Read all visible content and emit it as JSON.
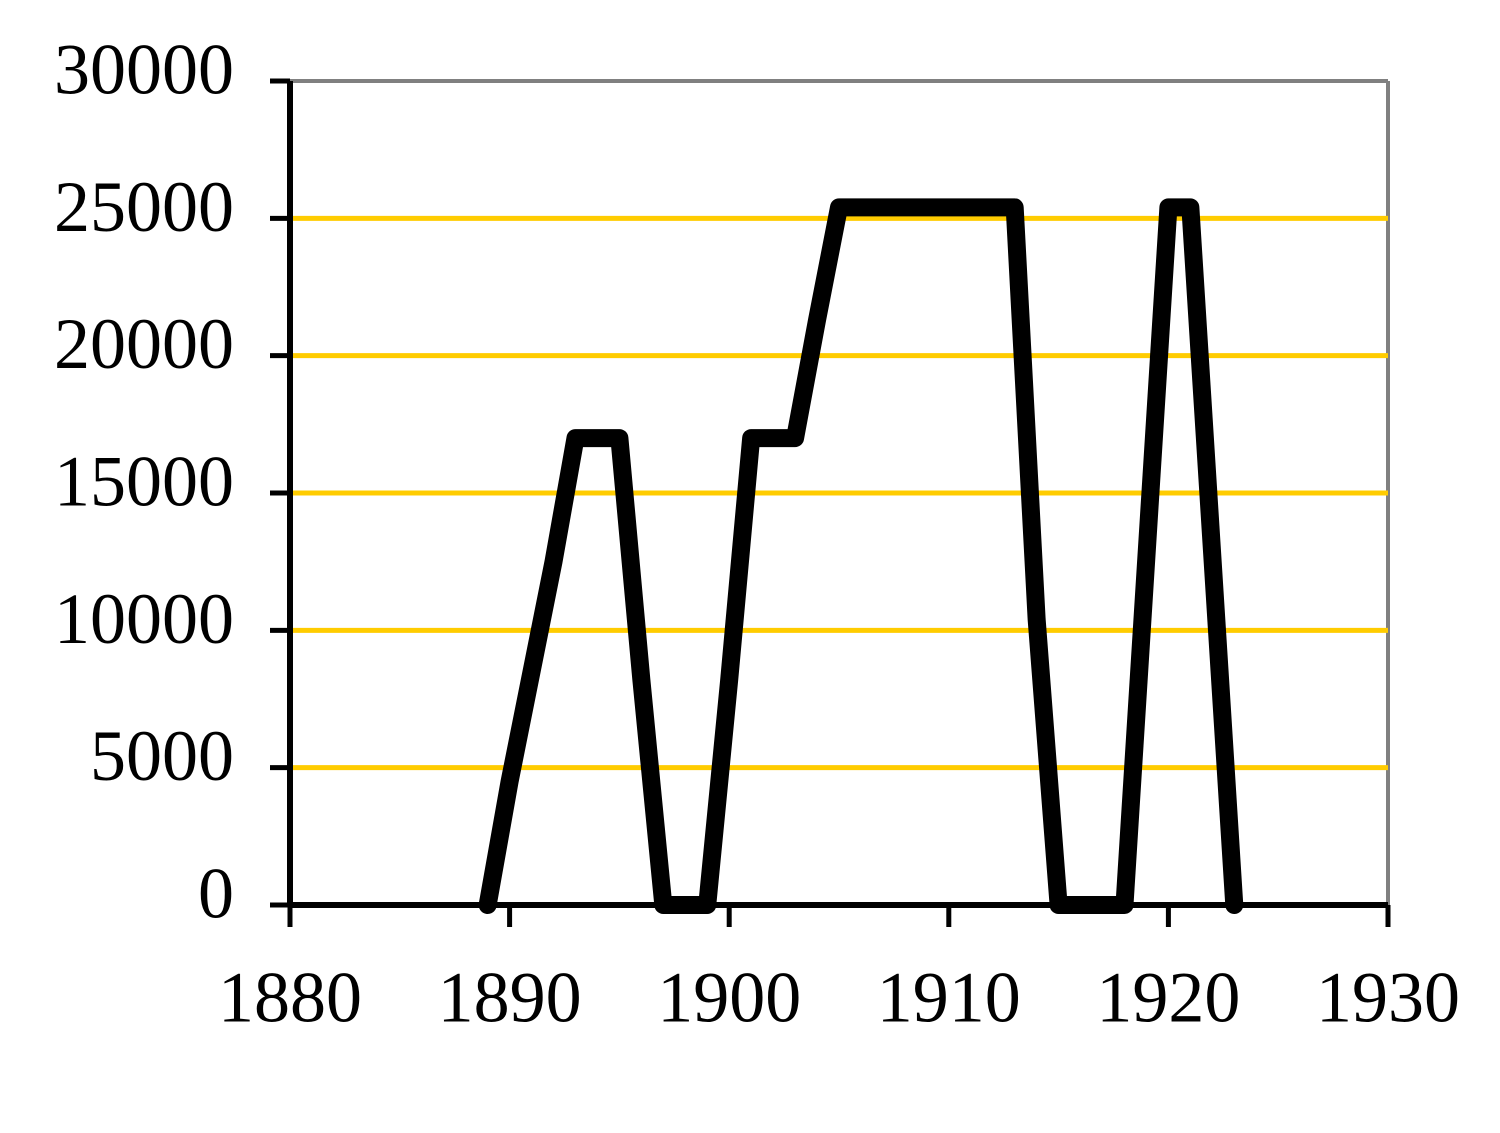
{
  "chart_data": {
    "type": "line",
    "x": [
      1889,
      1890,
      1892,
      1893,
      1895,
      1896,
      1897,
      1899,
      1900,
      1901,
      1903,
      1904,
      1905,
      1913,
      1914,
      1915,
      1918,
      1920,
      1921,
      1923
    ],
    "values": [
      0,
      4500,
      12500,
      17000,
      17000,
      8200,
      0,
      0,
      8200,
      17000,
      17000,
      21300,
      25400,
      25400,
      10400,
      0,
      0,
      25400,
      25400,
      0
    ],
    "color": "#000000",
    "xlim": [
      1880,
      1930
    ],
    "xticks": [
      1880,
      1890,
      1900,
      1910,
      1920,
      1930
    ],
    "ylim": [
      0,
      30000
    ],
    "yticks": [
      0,
      5000,
      10000,
      15000,
      20000,
      25000,
      30000
    ],
    "grid": true,
    "grid_color": "#ffcc00"
  }
}
